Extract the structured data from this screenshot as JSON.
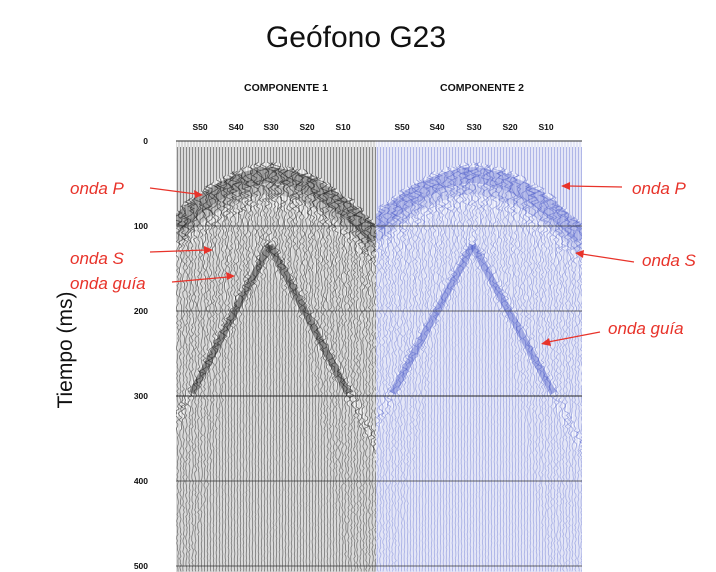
{
  "figure": {
    "title": "Geófono G23",
    "panels": [
      {
        "label": "COMPONENTE 1",
        "color": "#1a1a1a"
      },
      {
        "label": "COMPONENTE 2",
        "color": "#4a58c8"
      }
    ],
    "trace_labels": [
      "S50",
      "S40",
      "S30",
      "S20",
      "S10"
    ],
    "y_axis": {
      "label": "Tiempo (ms)",
      "ticks": [
        "0",
        "100",
        "200",
        "300",
        "400",
        "500"
      ]
    },
    "annotations": {
      "left": [
        "onda P",
        "onda S",
        "onda guía"
      ],
      "right": [
        "onda P",
        "onda S",
        "onda guía"
      ]
    },
    "annotation_color": "#e8332a"
  }
}
